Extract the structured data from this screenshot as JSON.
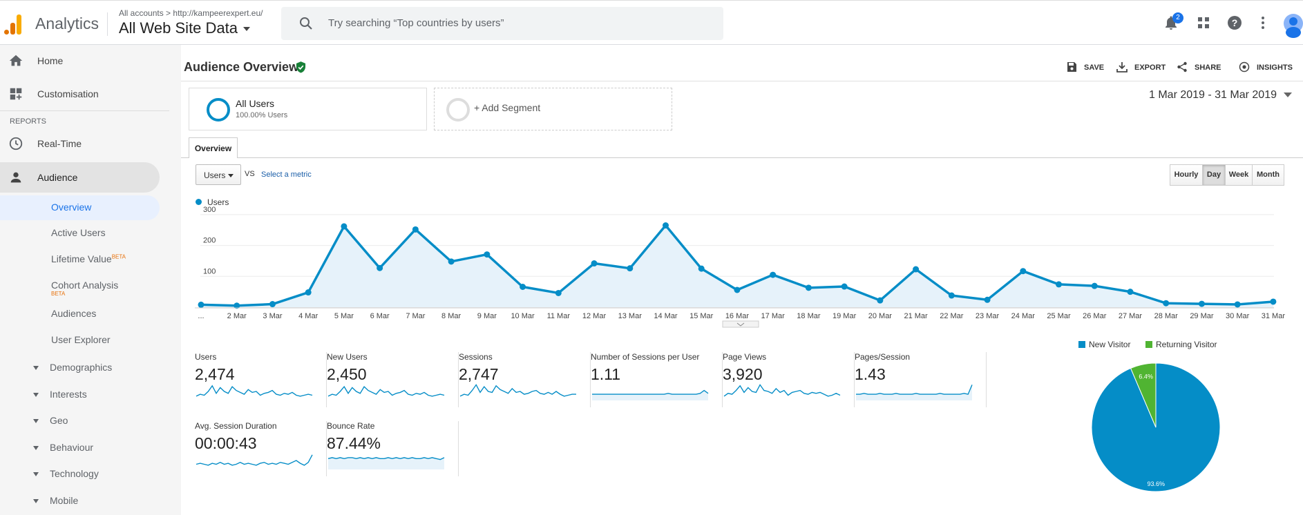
{
  "header": {
    "app_name": "Analytics",
    "breadcrumb_root": "All accounts",
    "breadcrumb_property": "http://kampeerexpert.eu/",
    "view_name": "All Web Site Data",
    "search_placeholder": "Try searching “Top countries by users”",
    "notification_count": "2",
    "icons": [
      "notifications-icon",
      "apps-icon",
      "help-icon",
      "more-vert-icon",
      "account-avatar"
    ]
  },
  "sidebar": {
    "home": "Home",
    "customisation": "Customisation",
    "reports_header": "REPORTS",
    "realtime": "Real-Time",
    "audience": "Audience",
    "audience_items": [
      "Overview",
      "Active Users",
      "Lifetime Value",
      "Cohort Analysis",
      "Audiences",
      "User Explorer"
    ],
    "beta_label": "BETA",
    "groups": [
      "Demographics",
      "Interests",
      "Geo",
      "Behaviour",
      "Technology",
      "Mobile"
    ]
  },
  "page": {
    "title": "Audience Overview",
    "actions": [
      "SAVE",
      "EXPORT",
      "SHARE",
      "INSIGHTS"
    ],
    "segment": {
      "name": "All Users",
      "sub": "100.00% Users"
    },
    "add_segment": "+ Add Segment",
    "date_range": "1 Mar 2019 - 31 Mar 2019",
    "tab": "Overview",
    "metric_selector": "Users",
    "vs": "VS",
    "select_metric": "Select a metric",
    "granularity": [
      "Hourly",
      "Day",
      "Week",
      "Month"
    ],
    "granularity_selected": "Day",
    "legend": "Users"
  },
  "chart_data": [
    {
      "type": "area",
      "series": [
        {
          "name": "Users",
          "color": "#058dc7",
          "values": [
            8,
            5,
            10,
            48,
            262,
            127,
            252,
            148,
            171,
            66,
            46,
            142,
            126,
            265,
            125,
            56,
            105,
            63,
            67,
            22,
            123,
            38,
            24,
            117,
            74,
            69,
            50,
            13,
            11,
            9,
            18
          ]
        }
      ],
      "x": [
        "...",
        "2 Mar",
        "3 Mar",
        "4 Mar",
        "5 Mar",
        "6 Mar",
        "7 Mar",
        "8 Mar",
        "9 Mar",
        "10 Mar",
        "11 Mar",
        "12 Mar",
        "13 Mar",
        "14 Mar",
        "15 Mar",
        "16 Mar",
        "17 Mar",
        "18 Mar",
        "19 Mar",
        "20 Mar",
        "21 Mar",
        "22 Mar",
        "23 Mar",
        "24 Mar",
        "25 Mar",
        "26 Mar",
        "27 Mar",
        "28 Mar",
        "29 Mar",
        "30 Mar",
        "31 Mar"
      ],
      "y_ticks": [
        "100",
        "200",
        "300"
      ],
      "ylim": [
        0,
        300
      ],
      "grid": true
    },
    {
      "type": "pie",
      "labels": [
        "New Visitor",
        "Returning Visitor"
      ],
      "values": [
        93.6,
        6.4
      ],
      "value_labels": [
        "93.6%",
        "6.4%"
      ],
      "colors": [
        "#058dc7",
        "#50b432"
      ],
      "legend": "top"
    }
  ],
  "metrics": [
    {
      "label": "Users",
      "value": "2,474",
      "spark": [
        3,
        5,
        4,
        8,
        14,
        6,
        12,
        8,
        6,
        13,
        9,
        7,
        5,
        10,
        7,
        8,
        4,
        6,
        7,
        9,
        5,
        4,
        6,
        5,
        7,
        4,
        3,
        4,
        5,
        4
      ],
      "fill": false
    },
    {
      "label": "New Users",
      "value": "2,450",
      "spark": [
        3,
        5,
        4,
        8,
        13,
        6,
        12,
        8,
        6,
        13,
        9,
        7,
        5,
        10,
        7,
        8,
        4,
        6,
        7,
        9,
        5,
        4,
        6,
        5,
        7,
        4,
        3,
        4,
        5,
        4
      ],
      "fill": false
    },
    {
      "label": "Sessions",
      "value": "2,747",
      "spark": [
        3,
        5,
        4,
        9,
        15,
        7,
        13,
        8,
        7,
        14,
        10,
        8,
        6,
        11,
        7,
        8,
        5,
        6,
        8,
        9,
        6,
        5,
        7,
        5,
        8,
        5,
        3,
        4,
        5,
        5
      ],
      "fill": false
    },
    {
      "label": "Number of Sessions per User",
      "value": "1.11",
      "spark": [
        5,
        5,
        5,
        5,
        5,
        5,
        5,
        5,
        5,
        5,
        5,
        5,
        5,
        5,
        5,
        5,
        5,
        5,
        5,
        6,
        5,
        5,
        5,
        5,
        5,
        5,
        5,
        6,
        9,
        6
      ],
      "fill": true
    },
    {
      "label": "Page Views",
      "value": "3,920",
      "spark": [
        3,
        6,
        5,
        9,
        14,
        7,
        12,
        8,
        7,
        15,
        9,
        8,
        6,
        11,
        7,
        9,
        4,
        7,
        8,
        9,
        6,
        5,
        7,
        6,
        7,
        5,
        3,
        4,
        6,
        4
      ],
      "fill": false
    },
    {
      "label": "Pages/Session",
      "value": "1.43",
      "spark": [
        5,
        5,
        6,
        5,
        5,
        5,
        6,
        5,
        5,
        5,
        6,
        5,
        5,
        5,
        5,
        6,
        5,
        5,
        5,
        5,
        5,
        6,
        5,
        5,
        5,
        5,
        5,
        6,
        5,
        15
      ],
      "fill": true
    },
    {
      "label": "Avg. Session Duration",
      "value": "00:00:43",
      "spark": [
        4,
        5,
        4,
        3,
        5,
        4,
        6,
        4,
        5,
        3,
        4,
        6,
        4,
        5,
        4,
        3,
        5,
        6,
        4,
        5,
        4,
        6,
        5,
        4,
        6,
        8,
        5,
        3,
        6,
        14
      ],
      "fill": false
    },
    {
      "label": "Bounce Rate",
      "value": "87.44%",
      "spark": [
        10,
        11,
        10,
        11,
        10,
        11,
        11,
        10,
        11,
        10,
        11,
        10,
        11,
        10,
        10,
        11,
        10,
        11,
        10,
        11,
        10,
        11,
        10,
        10,
        11,
        10,
        11,
        10,
        9,
        11
      ],
      "fill": true
    }
  ]
}
